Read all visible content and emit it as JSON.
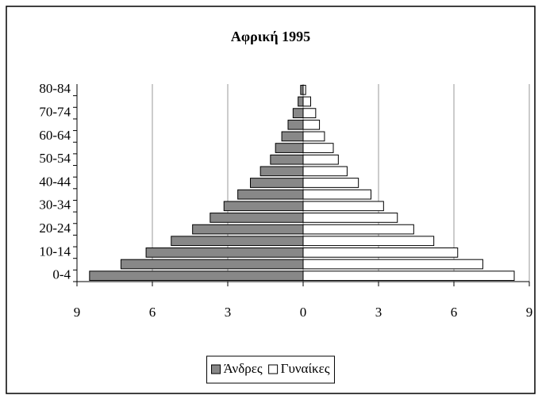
{
  "chart_data": {
    "type": "pyramid",
    "title": "Αφρική 1995",
    "categories": [
      "0-4",
      null,
      "10-14",
      null,
      "20-24",
      null,
      "30-34",
      null,
      "40-44",
      null,
      "50-54",
      null,
      "60-64",
      null,
      "70-74",
      null,
      "80-84"
    ],
    "series": [
      {
        "name": "Άνδρες",
        "color": "#888888",
        "values": [
          -8.5,
          -7.25,
          -6.25,
          -5.25,
          -4.4,
          -3.7,
          -3.15,
          -2.6,
          -2.1,
          -1.7,
          -1.3,
          -1.1,
          -0.85,
          -0.6,
          -0.4,
          -0.2,
          -0.1
        ]
      },
      {
        "name": "Γυναίκες",
        "color": "#ffffff",
        "values": [
          8.4,
          7.15,
          6.15,
          5.2,
          4.4,
          3.75,
          3.2,
          2.7,
          2.2,
          1.75,
          1.4,
          1.2,
          0.85,
          0.65,
          0.5,
          0.3,
          0.1
        ]
      }
    ],
    "xlim": [
      -9,
      9
    ],
    "xticks": [
      {
        "value": -9,
        "label": "9"
      },
      {
        "value": -6,
        "label": "6"
      },
      {
        "value": -3,
        "label": "3"
      },
      0,
      3,
      6,
      9
    ],
    "grid": true,
    "legend": "bottom"
  }
}
